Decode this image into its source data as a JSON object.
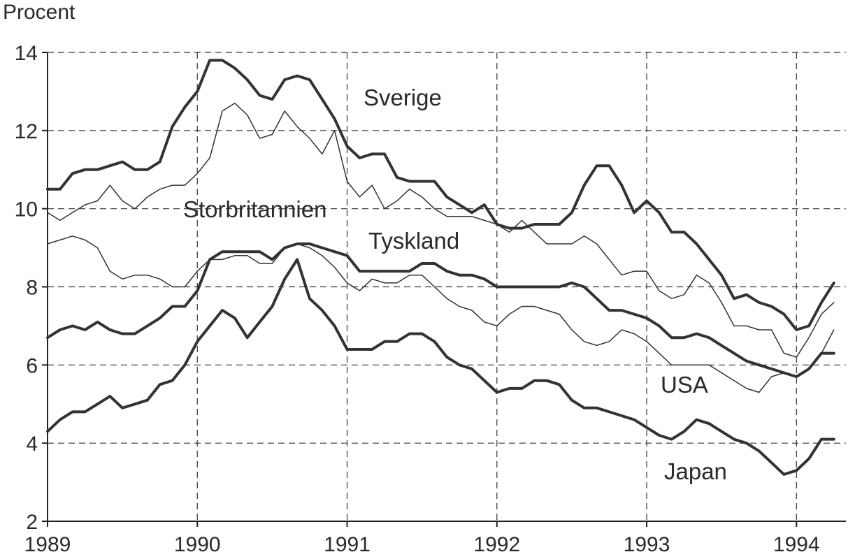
{
  "chart_data": {
    "type": "line",
    "ylabel": "Procent",
    "ylim": [
      2,
      14
    ],
    "yticks": [
      2,
      4,
      6,
      8,
      10,
      12,
      14
    ],
    "xlim": [
      1989.0,
      1994.33
    ],
    "xticks": [
      1989,
      1990,
      1991,
      1992,
      1993,
      1994
    ],
    "xtick_labels": [
      "1989",
      "1990",
      "1991",
      "1992",
      "1993",
      "1994"
    ],
    "grid": true,
    "x_start": 1989.0,
    "x_step": 0.08333,
    "series": [
      {
        "name": "Sverige",
        "weight": "thick",
        "values": [
          10.5,
          10.5,
          10.9,
          11.0,
          11.0,
          11.1,
          11.2,
          11.0,
          11.0,
          11.2,
          12.1,
          12.6,
          13.0,
          13.8,
          13.8,
          13.6,
          13.3,
          12.9,
          12.8,
          13.3,
          13.4,
          13.3,
          12.8,
          12.3,
          11.6,
          11.3,
          11.4,
          11.4,
          10.8,
          10.7,
          10.7,
          10.7,
          10.3,
          10.1,
          9.9,
          10.1,
          9.6,
          9.5,
          9.5,
          9.6,
          9.6,
          9.6,
          9.9,
          10.6,
          11.1,
          11.1,
          10.6,
          9.9,
          10.2,
          9.9,
          9.4,
          9.4,
          9.1,
          8.7,
          8.3,
          7.7,
          7.8,
          7.6,
          7.5,
          7.3,
          6.9,
          7.0,
          7.6,
          8.1
        ]
      },
      {
        "name": "Storbritannien",
        "weight": "thin",
        "values": [
          9.9,
          9.7,
          9.9,
          10.1,
          10.2,
          10.6,
          10.2,
          10.0,
          10.3,
          10.5,
          10.6,
          10.6,
          10.9,
          11.3,
          12.5,
          12.7,
          12.4,
          11.8,
          11.9,
          12.5,
          12.1,
          11.8,
          11.4,
          12.0,
          10.7,
          10.3,
          10.6,
          10.0,
          10.2,
          10.5,
          10.3,
          10.0,
          9.8,
          9.8,
          9.8,
          9.7,
          9.6,
          9.4,
          9.7,
          9.4,
          9.1,
          9.1,
          9.1,
          9.3,
          9.1,
          8.7,
          8.3,
          8.4,
          8.4,
          7.9,
          7.7,
          7.8,
          8.3,
          8.1,
          7.6,
          7.0,
          7.0,
          6.9,
          6.9,
          6.3,
          6.2,
          6.7,
          7.3,
          7.6
        ]
      },
      {
        "name": "Tyskland",
        "weight": "thin",
        "values": [
          9.1,
          9.2,
          9.3,
          9.2,
          9.0,
          8.4,
          8.2,
          8.3,
          8.3,
          8.2,
          8.0,
          8.0,
          8.4,
          8.7,
          8.7,
          8.8,
          8.8,
          8.6,
          8.6,
          9.0,
          9.1,
          9.0,
          8.8,
          8.5,
          8.1,
          7.9,
          8.2,
          8.1,
          8.1,
          8.3,
          8.3,
          8.0,
          7.7,
          7.5,
          7.4,
          7.1,
          7.0,
          7.3,
          7.5,
          7.5,
          7.4,
          7.3,
          6.9,
          6.6,
          6.5,
          6.6,
          6.9,
          6.8,
          6.6,
          6.3,
          6.0,
          6.0,
          6.0,
          6.0,
          5.8,
          5.6,
          5.4,
          5.3,
          5.7,
          5.8,
          5.7,
          5.9,
          6.3,
          6.9
        ]
      },
      {
        "name": "USA",
        "weight": "thick",
        "values": [
          6.7,
          6.9,
          7.0,
          6.9,
          7.1,
          6.9,
          6.8,
          6.8,
          7.0,
          7.2,
          7.5,
          7.5,
          7.9,
          8.7,
          8.9,
          8.9,
          8.9,
          8.9,
          8.7,
          9.0,
          9.1,
          9.1,
          9.0,
          8.9,
          8.8,
          8.4,
          8.4,
          8.4,
          8.4,
          8.4,
          8.6,
          8.6,
          8.4,
          8.3,
          8.3,
          8.2,
          8.0,
          8.0,
          8.0,
          8.0,
          8.0,
          8.0,
          8.1,
          8.0,
          7.7,
          7.4,
          7.4,
          7.3,
          7.2,
          7.0,
          6.7,
          6.7,
          6.8,
          6.7,
          6.5,
          6.3,
          6.1,
          6.0,
          5.9,
          5.8,
          5.7,
          5.9,
          6.3,
          6.3
        ]
      },
      {
        "name": "Japan",
        "weight": "thick",
        "values": [
          4.3,
          4.6,
          4.8,
          4.8,
          5.0,
          5.2,
          4.9,
          5.0,
          5.1,
          5.5,
          5.6,
          6.0,
          6.6,
          7.0,
          7.4,
          7.2,
          6.7,
          7.1,
          7.5,
          8.2,
          8.7,
          7.7,
          7.4,
          7.0,
          6.4,
          6.4,
          6.4,
          6.6,
          6.6,
          6.8,
          6.8,
          6.6,
          6.2,
          6.0,
          5.9,
          5.6,
          5.3,
          5.4,
          5.4,
          5.6,
          5.6,
          5.5,
          5.1,
          4.9,
          4.9,
          4.8,
          4.7,
          4.6,
          4.4,
          4.2,
          4.1,
          4.3,
          4.6,
          4.5,
          4.3,
          4.1,
          4.0,
          3.8,
          3.5,
          3.2,
          3.3,
          3.6,
          4.1,
          4.1
        ]
      }
    ]
  }
}
